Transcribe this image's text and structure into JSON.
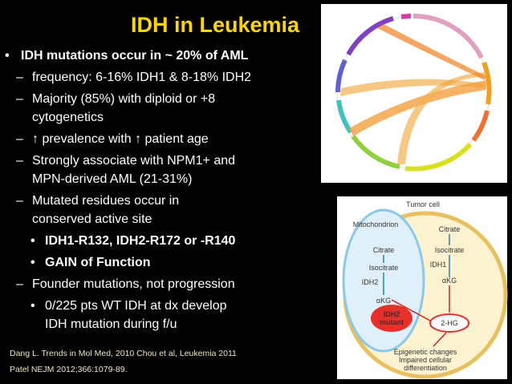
{
  "slide": {
    "title": "IDH in Leukemia",
    "bullets": [
      {
        "marker": "•",
        "level": 0,
        "highlight": false,
        "bold": true,
        "lines": [
          "IDH mutations occur in ~ 20% of AML"
        ]
      },
      {
        "marker": "–",
        "level": 1,
        "highlight": false,
        "bold": false,
        "lines": [
          "frequency: 6-16% IDH1 &  8-18% IDH2"
        ]
      },
      {
        "marker": "–",
        "level": 1,
        "highlight": false,
        "bold": false,
        "lines": [
          "Majority (85%) with diploid or +8",
          "cytogenetics"
        ]
      },
      {
        "marker": "–",
        "level": 1,
        "highlight": false,
        "bold": false,
        "lines": [
          "↑ prevalence with ↑ patient age"
        ]
      },
      {
        "marker": "–",
        "level": 1,
        "highlight": false,
        "bold": false,
        "lines": [
          "Strongly associate with NPM1+ and",
          "MPN-derived AML (21-31%)"
        ]
      },
      {
        "marker": "–",
        "level": 1,
        "highlight": false,
        "bold": false,
        "lines": [
          "Mutated residues occur in",
          "conserved active site"
        ]
      },
      {
        "marker": "•",
        "level": 2,
        "highlight": true,
        "bold": true,
        "lines": [
          "IDH1-R132, IDH2-R172 or -R140"
        ]
      },
      {
        "marker": "•",
        "level": 2,
        "highlight": true,
        "bold": true,
        "lines": [
          "GAIN of Function"
        ]
      },
      {
        "marker": "–",
        "level": 1,
        "highlight": false,
        "bold": false,
        "lines": [
          "Founder mutations, not progression"
        ]
      },
      {
        "marker": "•",
        "level": 2,
        "highlight": false,
        "bold": false,
        "lines": [
          "0/225 pts WT IDH at dx develop",
          "IDH mutation during f/u"
        ]
      }
    ],
    "references": [
      "Dang L. Trends in Mol Med, 2010 Chou et al, Leukemia 2011",
      "Patel NEJM 2012;366:1079-89."
    ],
    "diagram": {
      "cell_label": "Tumor cell",
      "mito_label": "Mitochondrion",
      "mito_citrate": "Citrate",
      "mito_isocitrate": "Isocitrate",
      "mito_enzyme": "IDH2",
      "mito_akg": "αKG",
      "cyto_citrate": "Citrate",
      "cyto_isocitrate": "Isocitrate",
      "cyto_enzyme": "IDH1",
      "cyto_akg": "αKG",
      "mutant": [
        "IDH2",
        "mutant"
      ],
      "product": "2-HG",
      "effects": [
        "Epigenetic changes",
        "Impaired cellular",
        "differentiation"
      ]
    }
  }
}
